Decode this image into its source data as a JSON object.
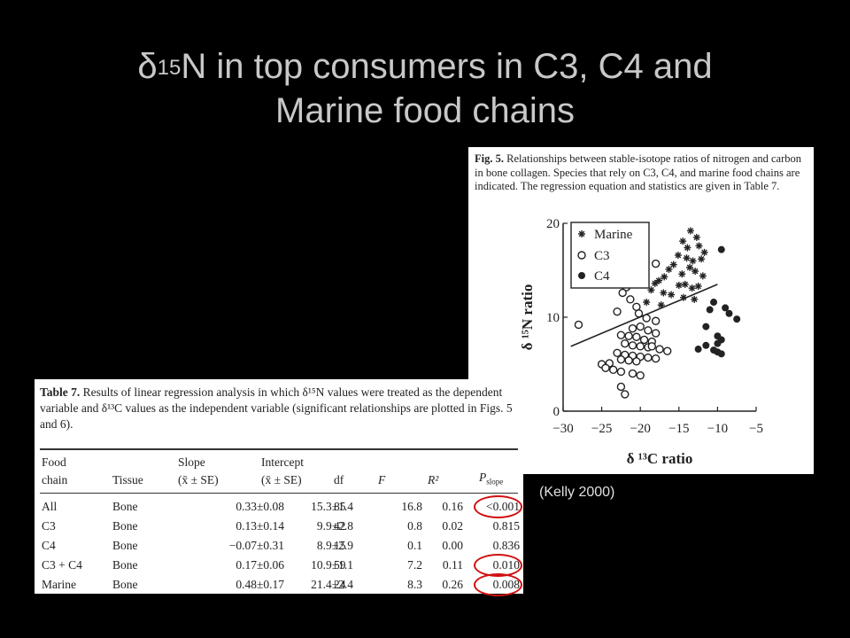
{
  "slide": {
    "title_delta": "δ",
    "title_sup": "15",
    "title_line1_rest": "N in top consumers in C3, C4 and",
    "title_line2": "Marine food chains",
    "credit": "(Kelly 2000)"
  },
  "figure": {
    "caption_label": "Fig. 5.",
    "caption_text": "Relationships between stable-isotope ratios of nitrogen and carbon in bone collagen. Species that rely on C3, C4, and marine food chains are indicated. The regression equation and statistics are given in Table 7.",
    "legend": [
      "Marine",
      "C3",
      "C4"
    ],
    "ylabel": "δ ¹⁵N ratio",
    "xlabel": "δ ¹³C ratio"
  },
  "chart_data": {
    "type": "scatter",
    "xlabel": "δ ¹³C ratio",
    "ylabel": "δ ¹⁵N ratio",
    "xlim": [
      -30,
      -5
    ],
    "ylim": [
      0,
      20
    ],
    "xticks": [
      -30,
      -25,
      -20,
      -15,
      -10,
      -5
    ],
    "yticks": [
      0,
      10,
      20
    ],
    "legend_position": "top-left",
    "series": [
      {
        "name": "Marine",
        "marker": "asterisk",
        "x": [
          -13.5,
          -12.7,
          -14.5,
          -13.9,
          -12.4,
          -11.7,
          -15.1,
          -14.0,
          -13.2,
          -12.1,
          -15.7,
          -16.3,
          -13.6,
          -12.9,
          -14.6,
          -11.9,
          -16.9,
          -17.6,
          -18.1,
          -15.0,
          -14.2,
          -13.3,
          -12.5,
          -18.6,
          -17.0,
          -16.0,
          -14.4,
          -13.0,
          -19.2,
          -17.3
        ],
        "y": [
          19.2,
          18.5,
          18.1,
          17.4,
          17.6,
          16.9,
          16.6,
          16.3,
          16.0,
          16.2,
          15.6,
          15.1,
          15.3,
          14.9,
          14.6,
          14.4,
          14.3,
          13.9,
          13.6,
          13.4,
          13.5,
          13.1,
          13.3,
          12.9,
          12.6,
          12.4,
          12.1,
          11.9,
          11.6,
          11.3
        ]
      },
      {
        "name": "C3",
        "marker": "open-circle",
        "x": [
          -18.0,
          -21.8,
          -22.3,
          -21.3,
          -20.5,
          -23.0,
          -28.0,
          -20.2,
          -19.2,
          -18.0,
          -20.0,
          -21.0,
          -19.0,
          -18.0,
          -22.5,
          -21.5,
          -20.5,
          -19.5,
          -18.5,
          -22.0,
          -21.0,
          -20.0,
          -19.0,
          -17.5,
          -16.5,
          -23.0,
          -22.0,
          -21.0,
          -20.0,
          -19.0,
          -18.0,
          -22.5,
          -21.5,
          -20.5,
          -24.0,
          -25.0,
          -24.5,
          -23.5,
          -22.5,
          -21.0,
          -20.0,
          -18.5,
          -22.5,
          -22.0
        ],
        "y": [
          15.7,
          13.2,
          12.6,
          11.9,
          11.1,
          10.6,
          9.2,
          10.4,
          9.9,
          9.6,
          9.0,
          8.8,
          8.6,
          8.3,
          8.1,
          8.0,
          7.9,
          7.6,
          7.4,
          7.2,
          7.0,
          6.9,
          6.8,
          6.6,
          6.4,
          6.2,
          6.0,
          5.9,
          5.8,
          5.7,
          5.6,
          5.5,
          5.4,
          5.3,
          5.1,
          5.0,
          4.6,
          4.4,
          4.2,
          4.0,
          3.8,
          6.9,
          2.6,
          1.8
        ]
      },
      {
        "name": "C4",
        "marker": "filled-circle",
        "x": [
          -9.5,
          -10.5,
          -9.0,
          -11.0,
          -8.5,
          -7.5,
          -11.5,
          -10.0,
          -9.5,
          -10.0,
          -11.5,
          -12.5,
          -10.5,
          -10.0,
          -9.5
        ],
        "y": [
          17.2,
          11.6,
          11.0,
          10.8,
          10.4,
          9.8,
          9.0,
          8.0,
          7.6,
          7.2,
          7.0,
          6.6,
          6.5,
          6.3,
          6.1
        ]
      }
    ],
    "regression_line": {
      "x": [
        -29,
        -10
      ],
      "y": [
        6.9,
        13.5
      ]
    }
  },
  "table": {
    "caption_label": "Table 7.",
    "caption_text_a": "Results of linear regression analysis in which δ¹⁵N values were treated as the dependent variable and δ¹³C values as the independent variable (significant relationships are plotted in Figs. 5 and 6).",
    "headers": {
      "food_chain_1": "Food",
      "food_chain_2": "chain",
      "tissue": "Tissue",
      "slope_1": "Slope",
      "slope_2": "(x̄ ± SE)",
      "intercept_1": "Intercept",
      "intercept_2": "(x̄ ± SE)",
      "df": "df",
      "f": "F",
      "r2": "R²",
      "p": "P",
      "p_sub": "slope"
    },
    "rows": [
      {
        "chain": "All",
        "tissue": "Bone",
        "slope": "0.33±0.08",
        "intercept": "15.3±1.4",
        "df": "85",
        "f": "16.8",
        "r2": "0.16",
        "p": "<0.001",
        "highlight": true
      },
      {
        "chain": "C3",
        "tissue": "Bone",
        "slope": "0.13±0.14",
        "intercept": "9.9±2.8",
        "df": "42",
        "f": "0.8",
        "r2": "0.02",
        "p": "0.815",
        "highlight": false
      },
      {
        "chain": "C4",
        "tissue": "Bone",
        "slope": "−0.07±0.31",
        "intercept": "8.9±2.9",
        "df": "15",
        "f": "0.1",
        "r2": "0.00",
        "p": "0.836",
        "highlight": false
      },
      {
        "chain": "C3 + C4",
        "tissue": "Bone",
        "slope": "0.17±0.06",
        "intercept": "10.9±1.1",
        "df": "59",
        "f": "7.2",
        "r2": "0.11",
        "p": "0.010",
        "highlight": true
      },
      {
        "chain": "Marine",
        "tissue": "Bone",
        "slope": "0.48±0.17",
        "intercept": "21.4±2.4",
        "df": "24",
        "f": "8.3",
        "r2": "0.26",
        "p": "0.008",
        "highlight": true
      }
    ],
    "highlight_color": "#d01010"
  }
}
